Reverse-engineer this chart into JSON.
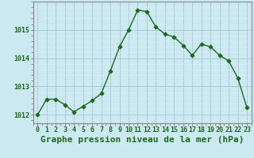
{
  "hours": [
    0,
    1,
    2,
    3,
    4,
    5,
    6,
    7,
    8,
    9,
    10,
    11,
    12,
    13,
    14,
    15,
    16,
    17,
    18,
    19,
    20,
    21,
    22,
    23
  ],
  "pressure": [
    1012.0,
    1012.55,
    1012.55,
    1012.35,
    1012.1,
    1012.3,
    1012.5,
    1012.75,
    1013.55,
    1014.4,
    1015.0,
    1015.7,
    1015.65,
    1015.1,
    1014.85,
    1014.75,
    1014.45,
    1014.1,
    1014.5,
    1014.4,
    1014.1,
    1013.9,
    1013.3,
    1012.25
  ],
  "line_color": "#1a6b1a",
  "marker": "D",
  "marker_size": 2.5,
  "bg_color": "#cce8f0",
  "grid_major_color": "#aaccdd",
  "grid_minor_color": "#d8eef5",
  "xlabel": "Graphe pression niveau de la mer (hPa)",
  "xlabel_fontsize": 8,
  "yticks": [
    1012,
    1013,
    1014,
    1015
  ],
  "ylim": [
    1011.7,
    1016.0
  ],
  "xlim": [
    -0.5,
    23.5
  ],
  "tick_color": "#1a6b1a",
  "tick_fontsize": 6,
  "axis_color": "#888888"
}
